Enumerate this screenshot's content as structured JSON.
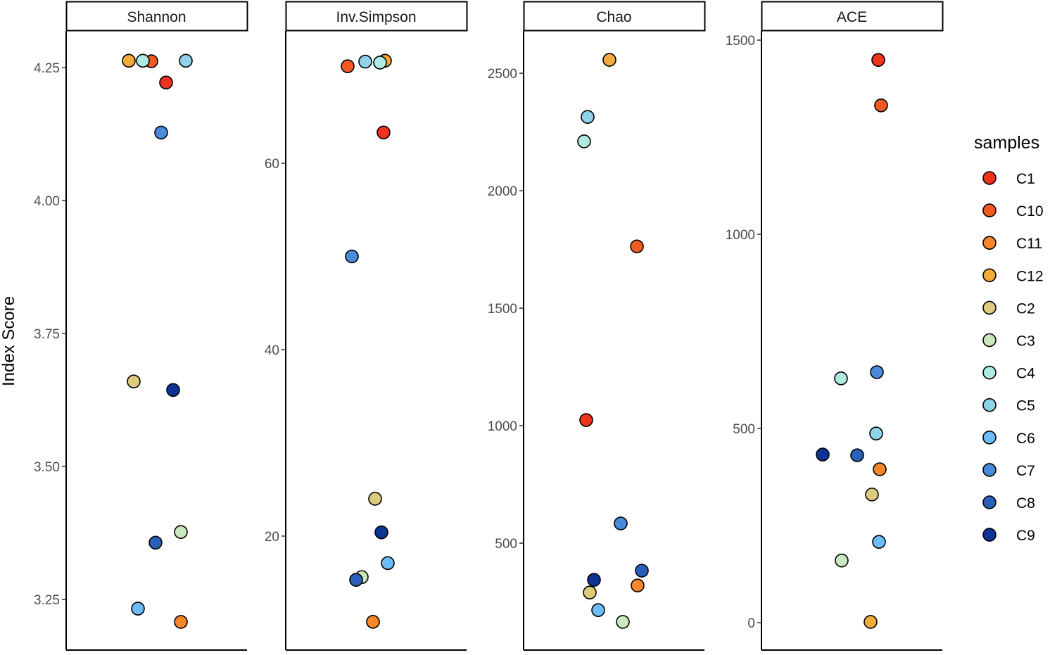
{
  "chart_data": {
    "type": "scatter",
    "ylabel": "Index Score",
    "legend": {
      "title": "samples",
      "placement": "right"
    },
    "samples": [
      "C1",
      "C10",
      "C11",
      "C12",
      "C2",
      "C3",
      "C4",
      "C5",
      "C6",
      "C7",
      "C8",
      "C9"
    ],
    "colors": {
      "C1": "#f0321e",
      "C10": "#f35a22",
      "C11": "#f5862a",
      "C12": "#f2ab3a",
      "C2": "#dccb7a",
      "C3": "#c9e8c0",
      "C4": "#aeeae2",
      "C5": "#8fd3ea",
      "C6": "#6cbcf5",
      "C7": "#4a8ad8",
      "C8": "#2a5fb8",
      "C9": "#0c3496"
    },
    "panels": [
      {
        "title": "Shannon",
        "ylim": [
          3.155,
          4.319
        ],
        "ticks": [
          3.25,
          3.5,
          3.75,
          4.0,
          4.25
        ],
        "tick_labels": [
          "3.25",
          "3.50",
          "3.75",
          "4.00",
          "4.25"
        ],
        "values": {
          "C1": 4.222,
          "C10": 4.262,
          "C11": 3.208,
          "C12": 4.263,
          "C2": 3.66,
          "C3": 3.377,
          "C4": 4.263,
          "C5": 4.263,
          "C6": 3.233,
          "C7": 4.128,
          "C8": 3.357,
          "C9": 3.644
        }
      },
      {
        "title": "Inv.Simpson",
        "ylim": [
          7.77,
          74.19
        ],
        "ticks": [
          20,
          40,
          60
        ],
        "tick_labels": [
          "20",
          "40",
          "60"
        ],
        "values": {
          "C1": 63.3,
          "C10": 70.4,
          "C11": 10.8,
          "C12": 71.0,
          "C2": 24.0,
          "C3": 15.6,
          "C4": 70.8,
          "C5": 70.9,
          "C6": 17.1,
          "C7": 50.0,
          "C8": 15.3,
          "C9": 20.4
        }
      },
      {
        "title": "Chao",
        "ylim": [
          45,
          2680
        ],
        "ticks": [
          500,
          1000,
          1500,
          2000,
          2500
        ],
        "tick_labels": [
          "500",
          "1000",
          "1500",
          "2000",
          "2500"
        ],
        "values": {
          "C1": 1024,
          "C10": 1763,
          "C11": 320,
          "C12": 2557,
          "C2": 290,
          "C3": 165,
          "C4": 2210,
          "C5": 2314,
          "C6": 215,
          "C7": 584,
          "C8": 383,
          "C9": 344
        }
      },
      {
        "title": "ACE",
        "ylim": [
          -70.6,
          1523.6
        ],
        "ticks": [
          0,
          500,
          1000,
          1500
        ],
        "tick_labels": [
          "0",
          "500",
          "1000",
          "1500"
        ],
        "values": {
          "C1": 1449,
          "C10": 1332,
          "C11": 395,
          "C12": 2,
          "C2": 330,
          "C3": 160,
          "C4": 629,
          "C5": 487,
          "C6": 208,
          "C7": 645,
          "C8": 431,
          "C9": 433
        }
      }
    ]
  }
}
